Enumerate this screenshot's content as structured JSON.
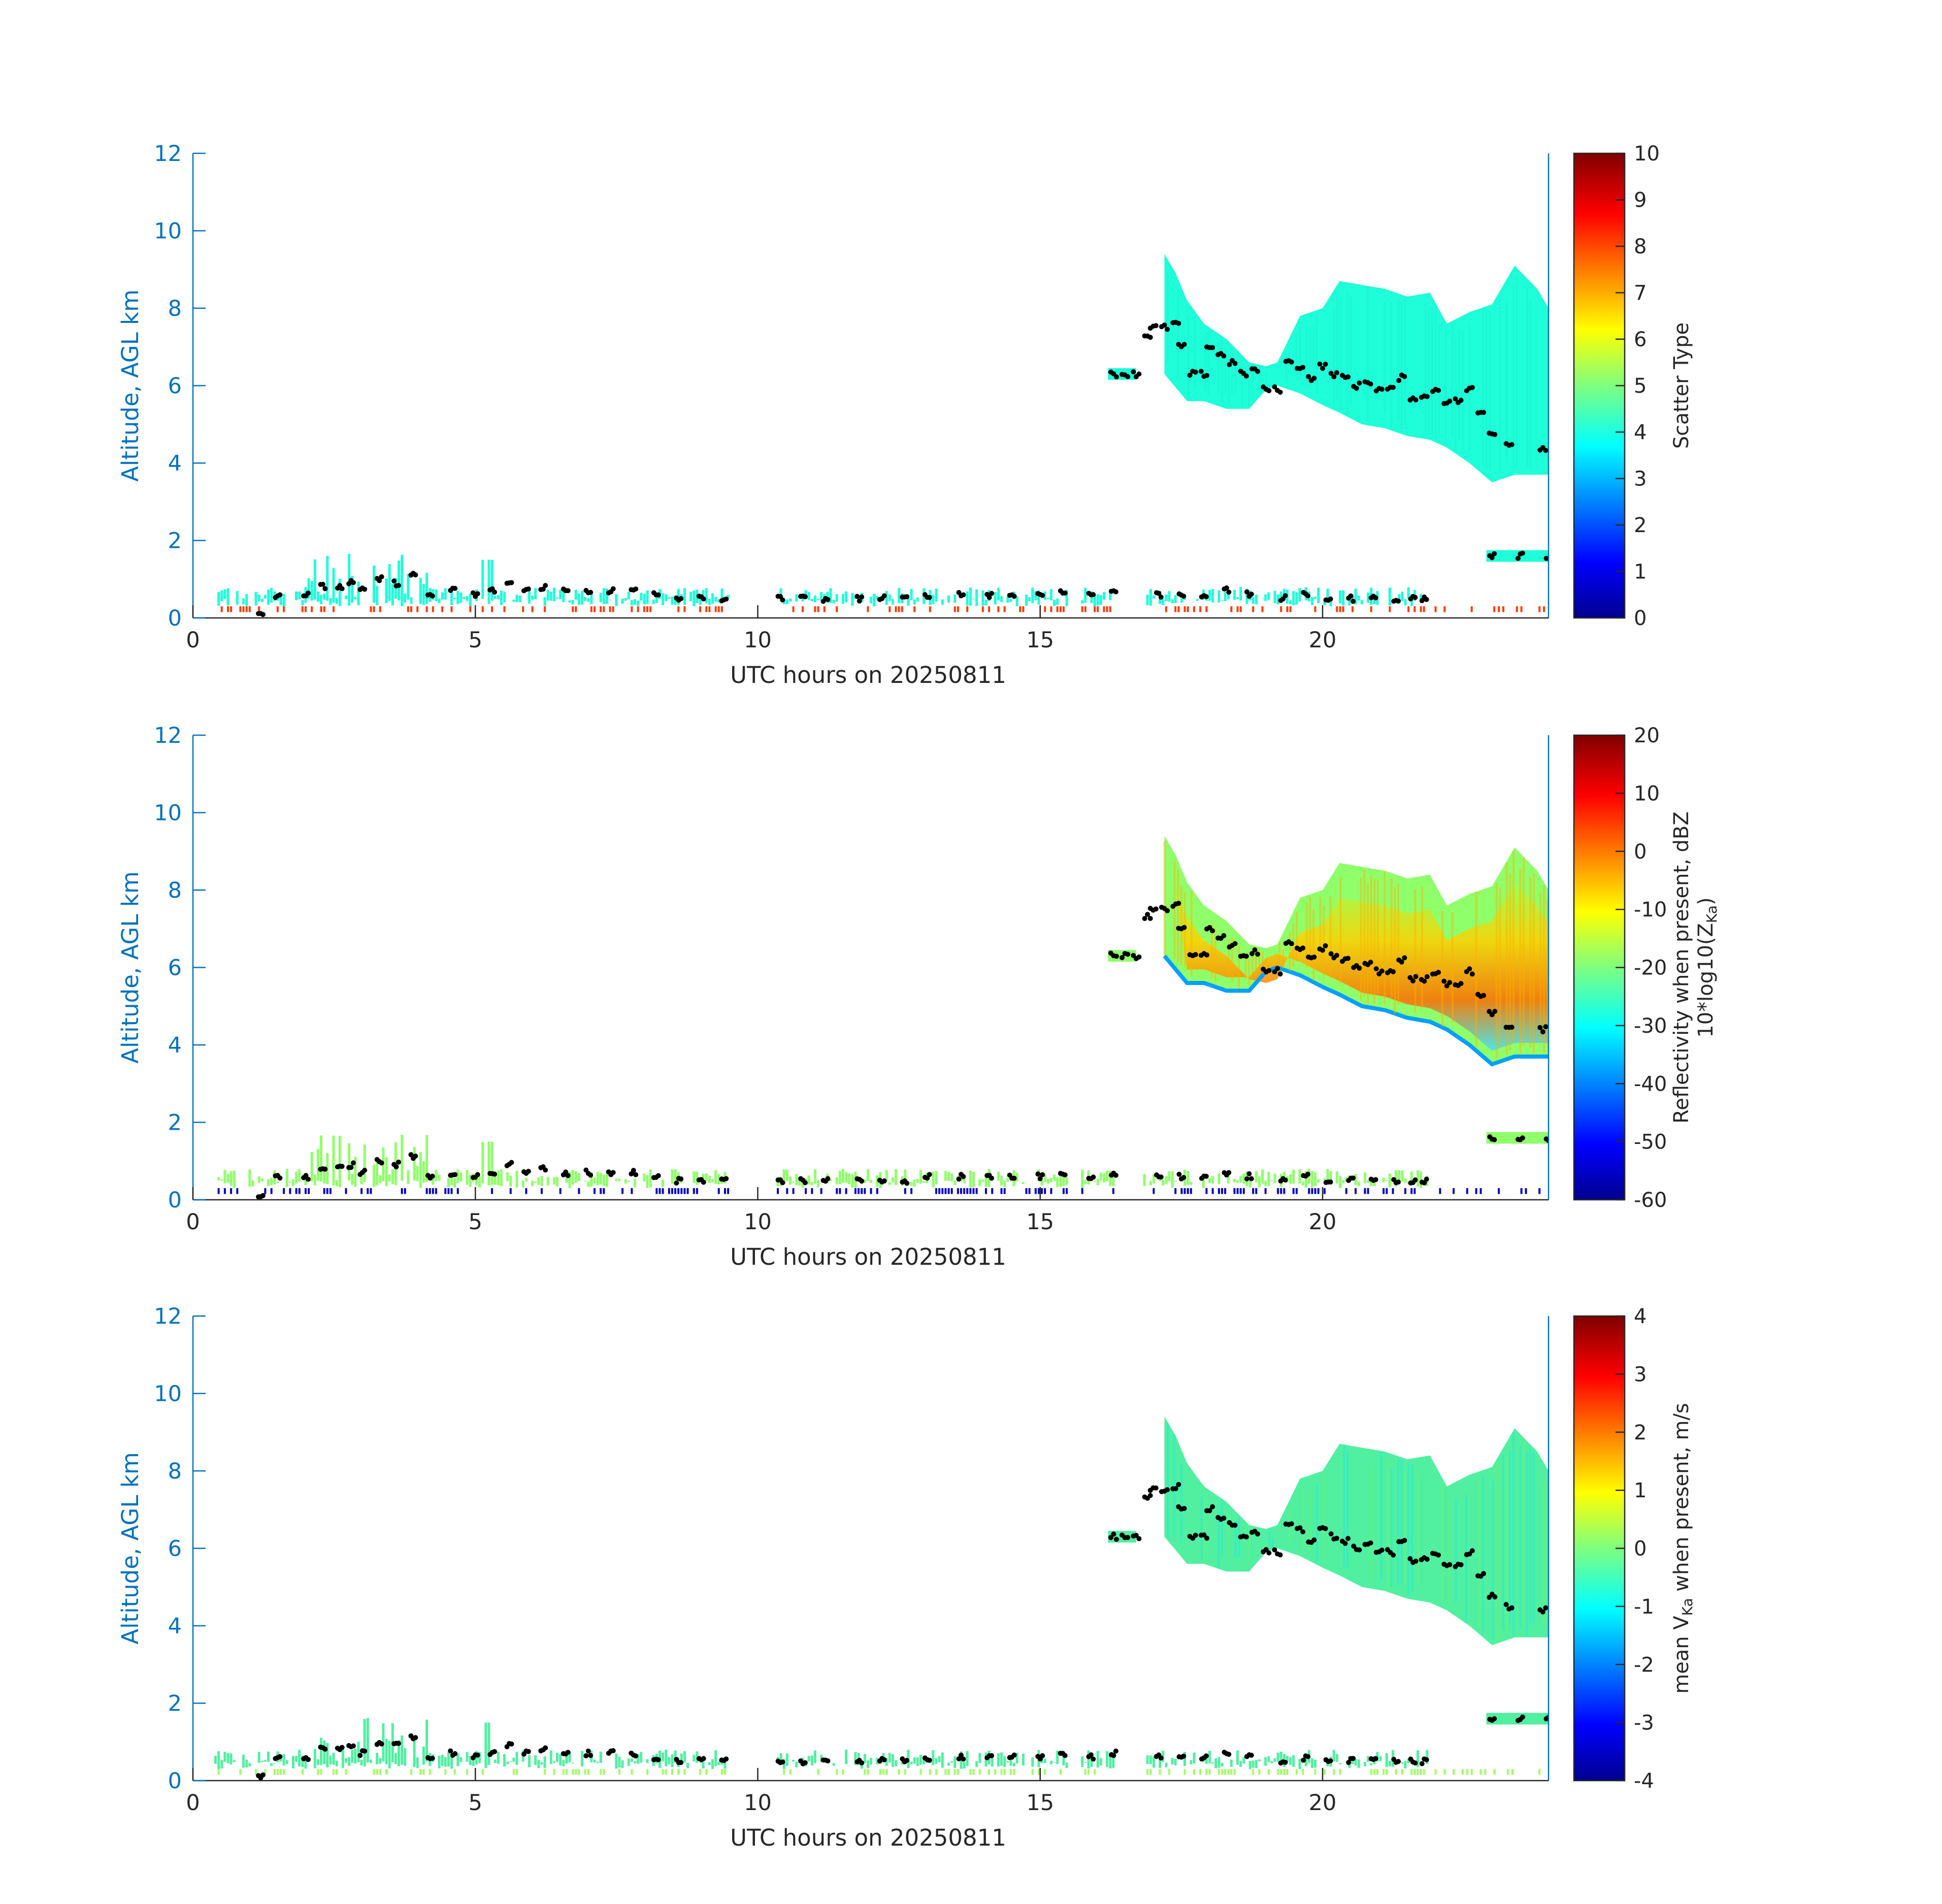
{
  "figure": {
    "x_axis_label": "UTC hours on 20250811",
    "y_axis_label": "Altitude, AGL km",
    "x_range": [
      0,
      24
    ],
    "y_range": [
      0,
      12
    ],
    "x_ticks": [
      0,
      5,
      10,
      15,
      20
    ],
    "y_ticks": [
      0,
      2,
      4,
      6,
      8,
      10,
      12
    ],
    "axis_color": "#0072bd",
    "marker_color": "#000000"
  },
  "panels": [
    {
      "id": "scatter-type",
      "colorbar_label": "Scatter Type",
      "colorbar_range": [
        0,
        10
      ],
      "colorbar_ticks": [
        "0",
        "1",
        "2",
        "3",
        "4",
        "5",
        "6",
        "7",
        "8",
        "9",
        "10"
      ],
      "cloud_color": "#1efed8",
      "low_layer_color": "#ff3a00"
    },
    {
      "id": "reflectivity",
      "colorbar_label": "Reflectivity when present, dBZ",
      "colorbar_label2": "10*log10(Z",
      "colorbar_label2_sub": "Ka",
      "colorbar_label2_end": ")",
      "colorbar_range": [
        -60,
        20
      ],
      "colorbar_ticks": [
        "-60",
        "-50",
        "-40",
        "-30",
        "-20",
        "-10",
        "0",
        "10",
        "20"
      ],
      "cloud_color": "#8fff6a",
      "core_color": "#ff8c00",
      "low_layer_color": "#0000c8"
    },
    {
      "id": "mean-velocity",
      "colorbar_label": "mean V",
      "colorbar_label_sub": "Ka",
      "colorbar_label_end": " when present, m/s",
      "colorbar_range": [
        -4,
        4
      ],
      "colorbar_ticks": [
        "-4",
        "-3",
        "-2",
        "-1",
        "0",
        "1",
        "2",
        "3",
        "4"
      ],
      "cloud_color": "#50f0a0",
      "low_layer_color": "#a0ff60"
    }
  ],
  "chart_data": {
    "type": "heatmap",
    "x_unit": "UTC hours",
    "y_unit": "km",
    "upper_cloud_top": {
      "x": [
        17.2,
        17.4,
        17.6,
        17.9,
        18.3,
        18.7,
        19.0,
        19.2,
        19.6,
        20.0,
        20.3,
        20.7,
        21.1,
        21.5,
        21.9,
        22.2,
        22.6,
        23.0,
        23.4,
        23.8,
        24.0
      ],
      "y": [
        9.4,
        8.9,
        8.2,
        7.6,
        7.2,
        6.6,
        6.5,
        6.6,
        7.8,
        8.0,
        8.7,
        8.6,
        8.5,
        8.3,
        8.4,
        7.6,
        7.9,
        8.1,
        9.1,
        8.5,
        8.0
      ]
    },
    "upper_cloud_base": {
      "x": [
        17.2,
        17.6,
        17.9,
        18.3,
        18.7,
        19.0,
        19.2,
        19.6,
        20.0,
        20.3,
        20.7,
        21.1,
        21.5,
        21.9,
        22.2,
        22.6,
        23.0,
        23.4,
        23.8,
        24.0
      ],
      "y": [
        6.3,
        5.6,
        5.6,
        5.4,
        5.4,
        5.9,
        6.0,
        5.8,
        5.5,
        5.3,
        5.0,
        4.9,
        4.7,
        4.6,
        4.4,
        4.0,
        3.5,
        3.7,
        3.7,
        3.7
      ]
    },
    "markers": {
      "x": [
        16.3,
        16.5,
        16.7,
        16.9,
        17.0,
        17.2,
        17.4,
        17.5,
        17.7,
        17.9,
        18.0,
        18.2,
        18.4,
        18.6,
        18.8,
        19.0,
        19.2,
        19.4,
        19.6,
        19.8,
        20.0,
        20.2,
        20.4,
        20.6,
        20.8,
        21.0,
        21.2,
        21.4,
        21.6,
        21.8,
        22.0,
        22.2,
        22.4,
        22.6,
        22.8,
        23.0,
        23.3,
        23.9
      ],
      "y": [
        6.3,
        6.3,
        6.3,
        7.3,
        7.5,
        7.5,
        7.6,
        7.0,
        6.3,
        6.3,
        7.0,
        6.8,
        6.6,
        6.3,
        6.4,
        5.9,
        5.9,
        6.6,
        6.5,
        6.2,
        6.5,
        6.3,
        6.2,
        6.0,
        6.1,
        5.9,
        5.9,
        6.2,
        5.7,
        5.7,
        5.9,
        5.6,
        5.6,
        5.9,
        5.3,
        4.8,
        4.5,
        4.4
      ]
    },
    "low_cloud_markers": {
      "x": [
        1.2,
        1.5,
        2.0,
        2.3,
        2.6,
        2.8,
        3.0,
        3.3,
        3.6,
        3.9,
        4.2,
        4.6,
        5.0,
        5.3,
        5.6,
        5.9,
        6.2,
        6.6,
        7.0,
        7.4,
        7.8,
        8.2,
        8.6,
        9.0,
        9.4,
        10.4,
        10.8,
        11.2,
        11.8,
        12.2,
        12.6,
        13.0,
        13.6,
        14.1,
        14.5,
        15.0,
        15.4,
        15.9,
        16.3,
        17.1,
        17.5,
        17.9,
        18.3,
        18.7,
        19.3,
        19.7,
        20.1,
        20.5,
        20.9,
        21.3,
        21.6,
        21.8,
        23.0,
        23.5,
        24.0
      ],
      "y": [
        0.1,
        0.6,
        0.6,
        0.8,
        0.8,
        0.9,
        0.7,
        1.0,
        0.9,
        1.1,
        0.6,
        0.7,
        0.6,
        0.7,
        0.9,
        0.7,
        0.8,
        0.7,
        0.7,
        0.7,
        0.7,
        0.6,
        0.5,
        0.5,
        0.5,
        0.5,
        0.5,
        0.5,
        0.5,
        0.5,
        0.5,
        0.6,
        0.6,
        0.6,
        0.6,
        0.6,
        0.7,
        0.6,
        0.7,
        0.6,
        0.6,
        0.6,
        0.7,
        0.6,
        0.5,
        0.6,
        0.5,
        0.5,
        0.5,
        0.5,
        0.5,
        0.5,
        1.6,
        1.6,
        1.6
      ]
    }
  }
}
